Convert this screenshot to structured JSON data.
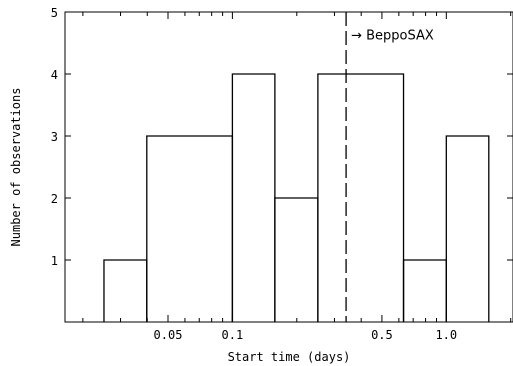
{
  "chart_data": {
    "type": "histogram",
    "title": "",
    "xlabel": "Start time (days)",
    "ylabel": "Number of observations",
    "x_scale": "log",
    "xlim": [
      0.0165,
      2.05
    ],
    "ylim": [
      0,
      5
    ],
    "x_ticks": [
      {
        "value": 0.05,
        "label": "0.05"
      },
      {
        "value": 0.1,
        "label": "0.1"
      },
      {
        "value": 0.5,
        "label": "0.5"
      },
      {
        "value": 1.0,
        "label": "1.0"
      }
    ],
    "y_ticks": [
      {
        "value": 1,
        "label": "1"
      },
      {
        "value": 2,
        "label": "2"
      },
      {
        "value": 3,
        "label": "3"
      },
      {
        "value": 4,
        "label": "4"
      },
      {
        "value": 5,
        "label": "5"
      }
    ],
    "bins": [
      {
        "x0": 0.0251,
        "x1": 0.0398,
        "count": 1
      },
      {
        "x0": 0.0398,
        "x1": 0.1,
        "count": 3
      },
      {
        "x0": 0.1,
        "x1": 0.158,
        "count": 4
      },
      {
        "x0": 0.158,
        "x1": 0.251,
        "count": 2
      },
      {
        "x0": 0.251,
        "x1": 0.631,
        "count": 4
      },
      {
        "x0": 0.631,
        "x1": 1.0,
        "count": 1
      },
      {
        "x0": 1.0,
        "x1": 1.58,
        "count": 3
      }
    ],
    "annotation": {
      "x": 0.34,
      "label": "→ BeppoSAX",
      "line_style": "dashed"
    },
    "grid": false,
    "legend": "none"
  }
}
